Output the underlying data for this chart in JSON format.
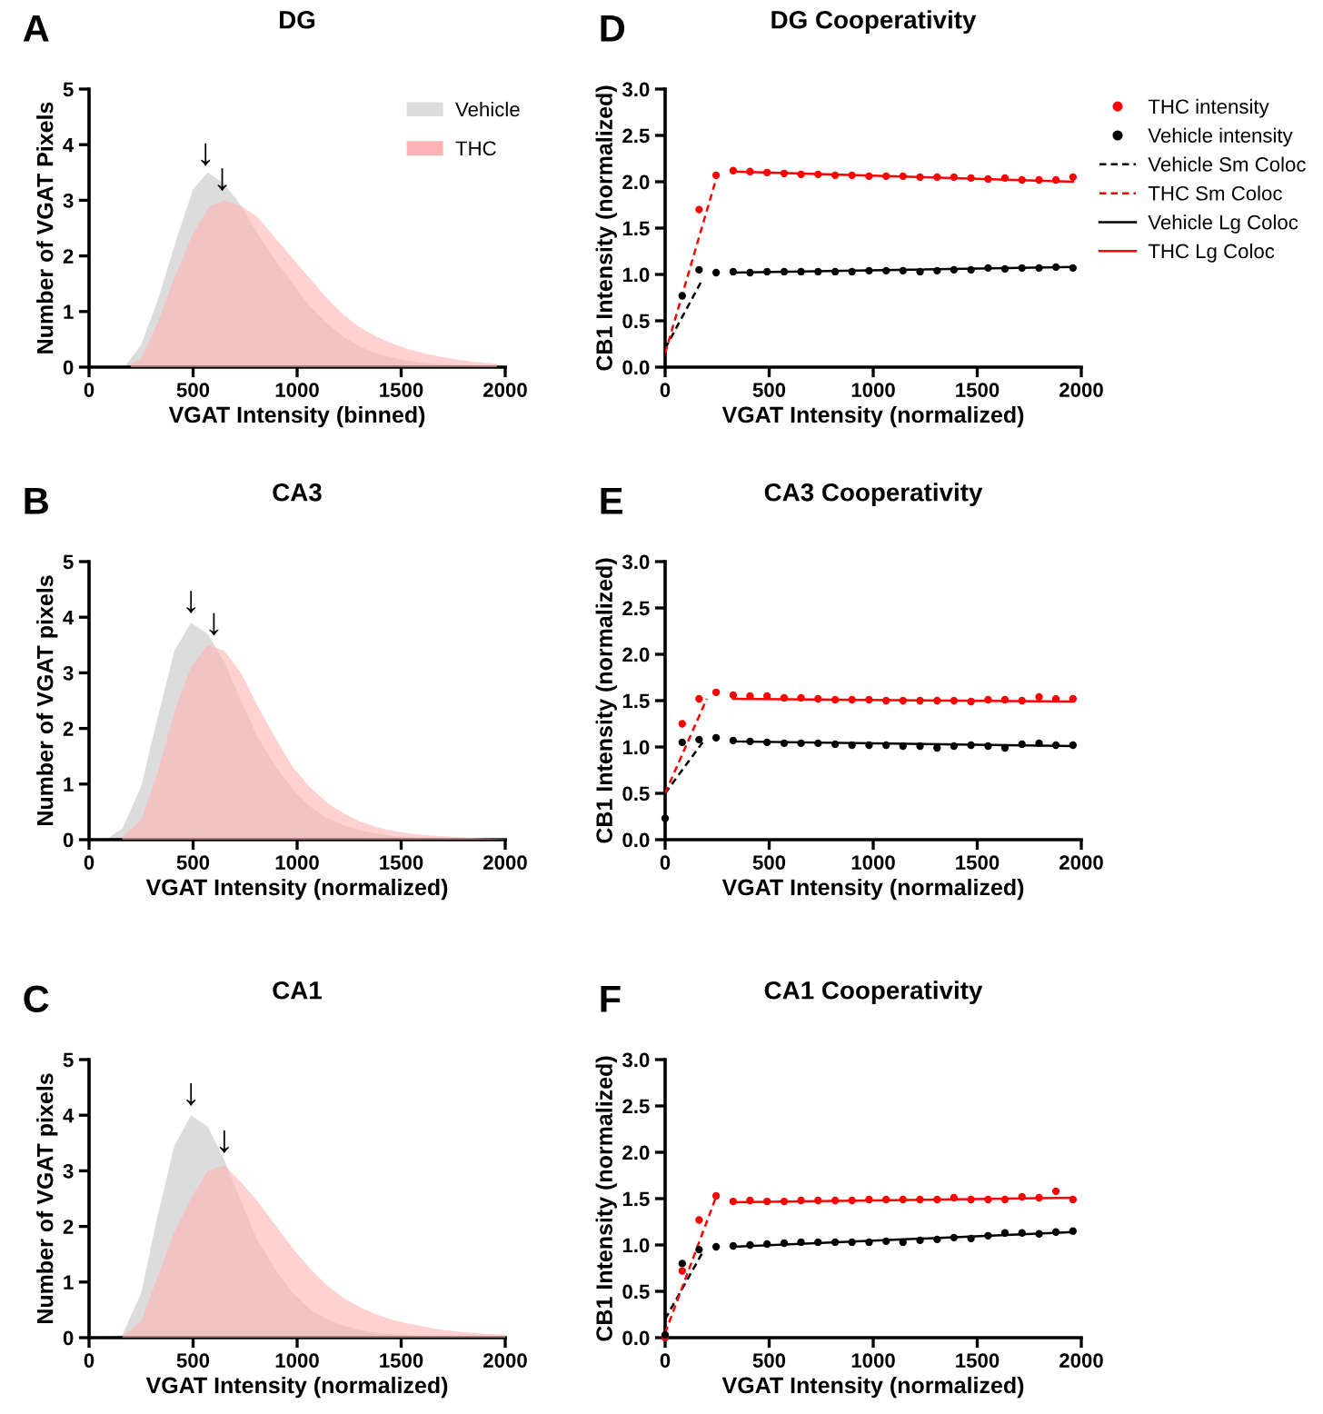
{
  "chart_data": [
    {
      "type": "area",
      "title": "DG",
      "xlabel": "VGAT Intensity (binned)",
      "ylabel": "Number of VGAT Pixels",
      "xlim": [
        0,
        2000
      ],
      "ylim": [
        0,
        5
      ],
      "xticks": [
        0,
        500,
        1000,
        1500,
        2000
      ],
      "yticks": [
        0,
        1,
        2,
        3,
        4,
        5
      ],
      "legend": "top right",
      "annotations": [
        "A",
        {
          "text": "↓",
          "x": 560,
          "y": 3.5
        },
        {
          "text": "↓",
          "x": 640,
          "y": 3.05
        }
      ],
      "series": [
        {
          "name": "Vehicle",
          "color": "#dcdcdc",
          "x": [
            170,
            250,
            330,
            420,
            500,
            570,
            650,
            730,
            810,
            900,
            980,
            1060,
            1140,
            1220,
            1300,
            1380,
            1460,
            1540,
            1620,
            1700,
            1780,
            1860,
            1960
          ],
          "values": [
            0,
            0.4,
            1.2,
            2.3,
            3.2,
            3.5,
            3.3,
            2.9,
            2.4,
            1.9,
            1.5,
            1.1,
            0.8,
            0.55,
            0.38,
            0.25,
            0.17,
            0.11,
            0.07,
            0.05,
            0.03,
            0.02,
            0.01
          ]
        },
        {
          "name": "THC",
          "color": "#ffb3b3",
          "x": [
            200,
            250,
            330,
            420,
            500,
            580,
            650,
            730,
            810,
            900,
            980,
            1060,
            1140,
            1220,
            1300,
            1380,
            1460,
            1540,
            1620,
            1700,
            1780,
            1860,
            1960
          ],
          "values": [
            0.05,
            0.15,
            0.8,
            1.7,
            2.4,
            2.9,
            3.0,
            2.9,
            2.7,
            2.3,
            1.95,
            1.6,
            1.25,
            0.95,
            0.72,
            0.55,
            0.42,
            0.32,
            0.24,
            0.18,
            0.13,
            0.09,
            0.06
          ]
        }
      ]
    },
    {
      "type": "scatter",
      "title": "DG Cooperativity",
      "xlabel": "VGAT Intensity (normalized)",
      "ylabel": "CB1 Intensity (normalized)",
      "xlim": [
        0,
        2000
      ],
      "ylim": [
        0,
        3
      ],
      "xticks": [
        0,
        500,
        1000,
        1500,
        2000
      ],
      "yticks": [
        {
          "value": 0,
          "label": "0.0"
        },
        {
          "value": 0.5,
          "label": "0.5"
        },
        {
          "value": 1,
          "label": "1.0"
        },
        {
          "value": 1.5,
          "label": "1.5"
        },
        {
          "value": 2,
          "label": "2.0"
        },
        {
          "value": 2.5,
          "label": "2.5"
        },
        {
          "value": 3,
          "label": "3.0"
        }
      ],
      "legend": "right",
      "marker": "circle",
      "annotations": [
        "D"
      ],
      "series": [
        {
          "name": "THC intensity",
          "color": "#ff0000",
          "x": [
            163,
            245,
            327,
            408,
            490,
            572,
            653,
            735,
            817,
            898,
            980,
            1062,
            1143,
            1225,
            1307,
            1388,
            1470,
            1552,
            1633,
            1715,
            1797,
            1878,
            1960
          ],
          "values": [
            1.7,
            2.07,
            2.12,
            2.11,
            2.1,
            2.09,
            2.08,
            2.08,
            2.07,
            2.07,
            2.06,
            2.06,
            2.06,
            2.05,
            2.05,
            2.05,
            2.04,
            2.03,
            2.04,
            2.02,
            2.02,
            2.02,
            2.05
          ]
        },
        {
          "name": "Vehicle intensity",
          "color": "#000000",
          "x": [
            82,
            163,
            245,
            327,
            408,
            490,
            572,
            653,
            735,
            817,
            898,
            980,
            1062,
            1143,
            1225,
            1307,
            1388,
            1470,
            1552,
            1633,
            1715,
            1797,
            1878,
            1960
          ],
          "values": [
            0.77,
            1.05,
            1.02,
            1.03,
            1.02,
            1.03,
            1.03,
            1.03,
            1.03,
            1.03,
            1.03,
            1.04,
            1.04,
            1.04,
            1.03,
            1.04,
            1.05,
            1.05,
            1.07,
            1.06,
            1.07,
            1.07,
            1.08,
            1.07
          ]
        },
        {
          "name": "Vehicle Sm Coloc",
          "type": "line",
          "line_style": "dashed",
          "marker": "none",
          "color": "#000000",
          "x": [
            0,
            180
          ],
          "values": [
            0.2,
            0.95
          ]
        },
        {
          "name": "THC Sm Coloc",
          "type": "line",
          "line_style": "dashed",
          "marker": "none",
          "color": "#ff0000",
          "x": [
            0,
            250
          ],
          "values": [
            0.15,
            2.07
          ]
        },
        {
          "name": "Vehicle Lg Coloc",
          "type": "line",
          "line_style": "solid",
          "marker": "none",
          "color": "#000000",
          "x": [
            327,
            1960
          ],
          "values": [
            1.02,
            1.08
          ]
        },
        {
          "name": "THC Lg Coloc",
          "type": "line",
          "line_style": "solid",
          "marker": "none",
          "color": "#ff0000",
          "x": [
            327,
            1960
          ],
          "values": [
            2.11,
            2.0
          ]
        }
      ]
    },
    {
      "type": "area",
      "title": "CA3",
      "xlabel": "VGAT Intensity (normalized)",
      "ylabel": "Number of VGAT pixels",
      "xlim": [
        0,
        2000
      ],
      "ylim": [
        0,
        5
      ],
      "xticks": [
        0,
        500,
        1000,
        1500,
        2000
      ],
      "yticks": [
        0,
        1,
        2,
        3,
        4,
        5
      ],
      "annotations": [
        "B",
        {
          "text": "↓",
          "x": 490,
          "y": 3.95
        },
        {
          "text": "↓",
          "x": 600,
          "y": 3.55
        }
      ],
      "series": [
        {
          "color": "#dcdcdc",
          "x": [
            80,
            160,
            250,
            330,
            410,
            490,
            570,
            650,
            730,
            810,
            900,
            980,
            1060,
            1140,
            1220,
            1300,
            1380,
            1460,
            1540,
            1620,
            1700,
            1800,
            2000
          ],
          "values": [
            0,
            0.2,
            0.95,
            2.2,
            3.4,
            3.9,
            3.7,
            3.2,
            2.5,
            1.85,
            1.3,
            0.9,
            0.6,
            0.4,
            0.26,
            0.17,
            0.11,
            0.07,
            0.05,
            0.03,
            0.02,
            0.01,
            0
          ]
        },
        {
          "color": "#ffb3b3",
          "x": [
            160,
            250,
            330,
            410,
            490,
            570,
            650,
            730,
            810,
            900,
            980,
            1060,
            1140,
            1220,
            1300,
            1380,
            1460,
            1540,
            1620,
            1700,
            1800,
            1900,
            2000
          ],
          "values": [
            0.05,
            0.35,
            1.2,
            2.3,
            3.1,
            3.5,
            3.4,
            3.0,
            2.4,
            1.8,
            1.3,
            0.95,
            0.68,
            0.48,
            0.33,
            0.23,
            0.16,
            0.11,
            0.08,
            0.06,
            0.04,
            0.02,
            0.01
          ]
        }
      ]
    },
    {
      "type": "scatter",
      "title": "CA3 Cooperativity",
      "xlabel": "VGAT Intensity (normalized)",
      "ylabel": "CB1 Intensity (normalized)",
      "xlim": [
        0,
        2000
      ],
      "ylim": [
        0,
        3
      ],
      "xticks": [
        0,
        500,
        1000,
        1500,
        2000
      ],
      "yticks": [
        {
          "value": 0,
          "label": "0.0"
        },
        {
          "value": 0.5,
          "label": "0.5"
        },
        {
          "value": 1,
          "label": "1.0"
        },
        {
          "value": 1.5,
          "label": "1.5"
        },
        {
          "value": 2,
          "label": "2.0"
        },
        {
          "value": 2.5,
          "label": "2.5"
        },
        {
          "value": 3,
          "label": "3.0"
        }
      ],
      "marker": "circle",
      "annotations": [
        "E"
      ],
      "series": [
        {
          "color": "#ff0000",
          "x": [
            82,
            163,
            245,
            327,
            408,
            490,
            572,
            653,
            735,
            817,
            898,
            980,
            1062,
            1143,
            1225,
            1307,
            1388,
            1470,
            1552,
            1633,
            1715,
            1797,
            1878,
            1960
          ],
          "values": [
            1.25,
            1.52,
            1.59,
            1.56,
            1.55,
            1.55,
            1.53,
            1.53,
            1.52,
            1.51,
            1.51,
            1.51,
            1.5,
            1.5,
            1.5,
            1.5,
            1.5,
            1.49,
            1.51,
            1.51,
            1.5,
            1.54,
            1.52,
            1.52
          ]
        },
        {
          "color": "#000000",
          "x": [
            0,
            82,
            163,
            245,
            327,
            408,
            490,
            572,
            653,
            735,
            817,
            898,
            980,
            1062,
            1143,
            1225,
            1307,
            1388,
            1470,
            1552,
            1633,
            1715,
            1797,
            1878,
            1960
          ],
          "values": [
            0.23,
            1.05,
            1.08,
            1.1,
            1.07,
            1.06,
            1.05,
            1.04,
            1.04,
            1.04,
            1.03,
            1.02,
            1.02,
            1.02,
            1.01,
            1.01,
            0.99,
            1.01,
            1.02,
            1.01,
            0.99,
            1.03,
            1.04,
            1.02,
            1.02
          ]
        },
        {
          "type": "line",
          "line_style": "dashed",
          "marker": "none",
          "color": "#000000",
          "x": [
            0,
            180
          ],
          "values": [
            0.5,
            1.05
          ]
        },
        {
          "type": "line",
          "line_style": "dashed",
          "marker": "none",
          "color": "#ff0000",
          "x": [
            0,
            200
          ],
          "values": [
            0.5,
            1.52
          ]
        },
        {
          "type": "line",
          "line_style": "solid",
          "marker": "none",
          "color": "#000000",
          "x": [
            327,
            1960
          ],
          "values": [
            1.06,
            1.01
          ]
        },
        {
          "type": "line",
          "line_style": "solid",
          "marker": "none",
          "color": "#ff0000",
          "x": [
            327,
            1960
          ],
          "values": [
            1.52,
            1.49
          ]
        }
      ]
    },
    {
      "type": "area",
      "title": "CA1",
      "xlabel": "VGAT Intensity (normalized)",
      "ylabel": "Number of VGAT pixels",
      "xlim": [
        0,
        2000
      ],
      "ylim": [
        0,
        5
      ],
      "xticks": [
        0,
        500,
        1000,
        1500,
        2000
      ],
      "yticks": [
        0,
        1,
        2,
        3,
        4,
        5
      ],
      "annotations": [
        "C",
        {
          "text": "↓",
          "x": 490,
          "y": 4.05
        },
        {
          "text": "↓",
          "x": 650,
          "y": 3.2
        }
      ],
      "series": [
        {
          "color": "#dcdcdc",
          "x": [
            0,
            160,
            250,
            330,
            410,
            490,
            570,
            650,
            730,
            810,
            900,
            980,
            1060,
            1140,
            1220,
            1300,
            1380,
            1460,
            1540,
            1620,
            1700,
            1800,
            2000
          ],
          "values": [
            0,
            0.05,
            0.8,
            2.2,
            3.45,
            4.0,
            3.8,
            3.2,
            2.45,
            1.75,
            1.2,
            0.8,
            0.52,
            0.34,
            0.22,
            0.14,
            0.09,
            0.06,
            0.04,
            0.03,
            0.02,
            0.01,
            0
          ]
        },
        {
          "color": "#ffb3b3",
          "x": [
            160,
            250,
            330,
            410,
            490,
            570,
            650,
            730,
            810,
            900,
            980,
            1060,
            1140,
            1220,
            1300,
            1380,
            1460,
            1540,
            1620,
            1700,
            1800,
            1900,
            2000
          ],
          "values": [
            0.02,
            0.3,
            1.1,
            1.9,
            2.5,
            3.0,
            3.1,
            2.8,
            2.45,
            2.0,
            1.6,
            1.25,
            0.95,
            0.72,
            0.55,
            0.42,
            0.32,
            0.25,
            0.19,
            0.14,
            0.1,
            0.07,
            0.05
          ]
        }
      ]
    },
    {
      "type": "scatter",
      "title": "CA1 Cooperativity",
      "xlabel": "VGAT Intensity (normalized)",
      "ylabel": "CB1 Intensity (normalized)",
      "xlim": [
        0,
        2000
      ],
      "ylim": [
        0,
        3
      ],
      "xticks": [
        0,
        500,
        1000,
        1500,
        2000
      ],
      "yticks": [
        {
          "value": 0,
          "label": "0.0"
        },
        {
          "value": 0.5,
          "label": "0.5"
        },
        {
          "value": 1,
          "label": "1.0"
        },
        {
          "value": 1.5,
          "label": "1.5"
        },
        {
          "value": 2,
          "label": "2.0"
        },
        {
          "value": 2.5,
          "label": "2.5"
        },
        {
          "value": 3,
          "label": "3.0"
        }
      ],
      "marker": "circle",
      "annotations": [
        "F"
      ],
      "series": [
        {
          "color": "#ff0000",
          "x": [
            0,
            82,
            163,
            245,
            327,
            408,
            490,
            572,
            653,
            735,
            817,
            898,
            980,
            1062,
            1143,
            1225,
            1307,
            1388,
            1470,
            1552,
            1633,
            1715,
            1797,
            1878,
            1960
          ],
          "values": [
            0,
            0.72,
            1.27,
            1.53,
            1.47,
            1.48,
            1.47,
            1.47,
            1.48,
            1.48,
            1.48,
            1.48,
            1.49,
            1.49,
            1.49,
            1.49,
            1.49,
            1.51,
            1.49,
            1.49,
            1.49,
            1.52,
            1.51,
            1.58,
            1.49
          ]
        },
        {
          "color": "#000000",
          "x": [
            0,
            82,
            163,
            245,
            327,
            408,
            490,
            572,
            653,
            735,
            817,
            898,
            980,
            1062,
            1143,
            1225,
            1307,
            1388,
            1470,
            1552,
            1633,
            1715,
            1797,
            1878,
            1960
          ],
          "values": [
            0.03,
            0.8,
            0.95,
            0.98,
            0.99,
            1.0,
            1.01,
            1.02,
            1.03,
            1.03,
            1.03,
            1.03,
            1.03,
            1.04,
            1.03,
            1.05,
            1.06,
            1.08,
            1.07,
            1.1,
            1.13,
            1.13,
            1.12,
            1.14,
            1.15
          ]
        },
        {
          "type": "line",
          "line_style": "dashed",
          "marker": "none",
          "color": "#000000",
          "x": [
            0,
            180
          ],
          "values": [
            0.2,
            0.92
          ]
        },
        {
          "type": "line",
          "line_style": "dashed",
          "marker": "none",
          "color": "#ff0000",
          "x": [
            0,
            245
          ],
          "values": [
            0.05,
            1.52
          ]
        },
        {
          "type": "line",
          "line_style": "solid",
          "marker": "none",
          "color": "#000000",
          "x": [
            327,
            1960
          ],
          "values": [
            0.98,
            1.14
          ]
        },
        {
          "type": "line",
          "line_style": "solid",
          "marker": "none",
          "color": "#ff0000",
          "x": [
            327,
            1960
          ],
          "values": [
            1.46,
            1.51
          ]
        }
      ]
    }
  ]
}
